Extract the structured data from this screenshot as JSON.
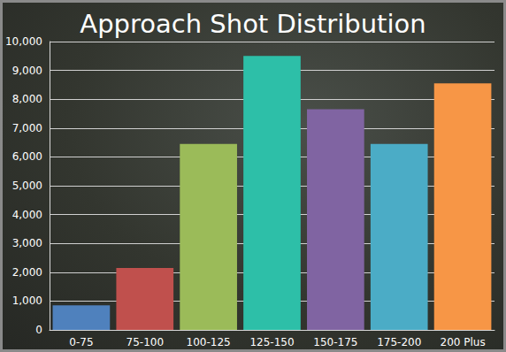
{
  "chart_data": {
    "type": "bar",
    "title": "Approach Shot Distribution",
    "categories": [
      "0-75",
      "75-100",
      "100-125",
      "125-150",
      "150-175",
      "175-200",
      "200 Plus"
    ],
    "values": [
      850,
      2150,
      6450,
      9500,
      7650,
      6450,
      8550
    ],
    "colors": [
      "#4f81bd",
      "#c0504d",
      "#9bbb59",
      "#2dbfa8",
      "#8064a2",
      "#4bacc6",
      "#f79646"
    ],
    "ylim": [
      0,
      10000
    ],
    "yticks": [
      0,
      {
        "value": 1000,
        "label": "1,000"
      },
      {
        "value": 2000,
        "label": "2,000"
      },
      {
        "value": 3000,
        "label": "3,000"
      },
      {
        "value": 4000,
        "label": "4,000"
      },
      {
        "value": 5000,
        "label": "5,000"
      },
      {
        "value": 6000,
        "label": "6,000"
      },
      {
        "value": 7000,
        "label": "7,000"
      },
      {
        "value": 8000,
        "label": "8,000"
      },
      {
        "value": 9000,
        "label": "9,000"
      },
      {
        "value": 10000,
        "label": "10,000"
      }
    ],
    "grid": true
  }
}
